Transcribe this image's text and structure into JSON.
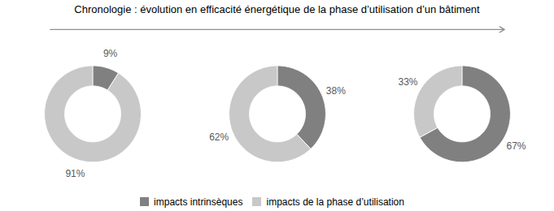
{
  "chart_data": {
    "type": "donut",
    "title": "Chronologie : évolution en efficacité énergétique de la phase d’utilisation d’un bâtiment",
    "categories": [
      "impacts intrinsèques",
      "impacts de la phase d’utilisation"
    ],
    "colors": [
      "#808080",
      "#c8c8c8"
    ],
    "series": [
      {
        "values": [
          9,
          91
        ],
        "value_labels": [
          "9%",
          "91%"
        ]
      },
      {
        "values": [
          38,
          62
        ],
        "value_labels": [
          "38%",
          "62%"
        ]
      },
      {
        "values": [
          67,
          33
        ],
        "value_labels": [
          "67%",
          "33%"
        ]
      }
    ],
    "data_labels": true,
    "legend": "bottom"
  }
}
